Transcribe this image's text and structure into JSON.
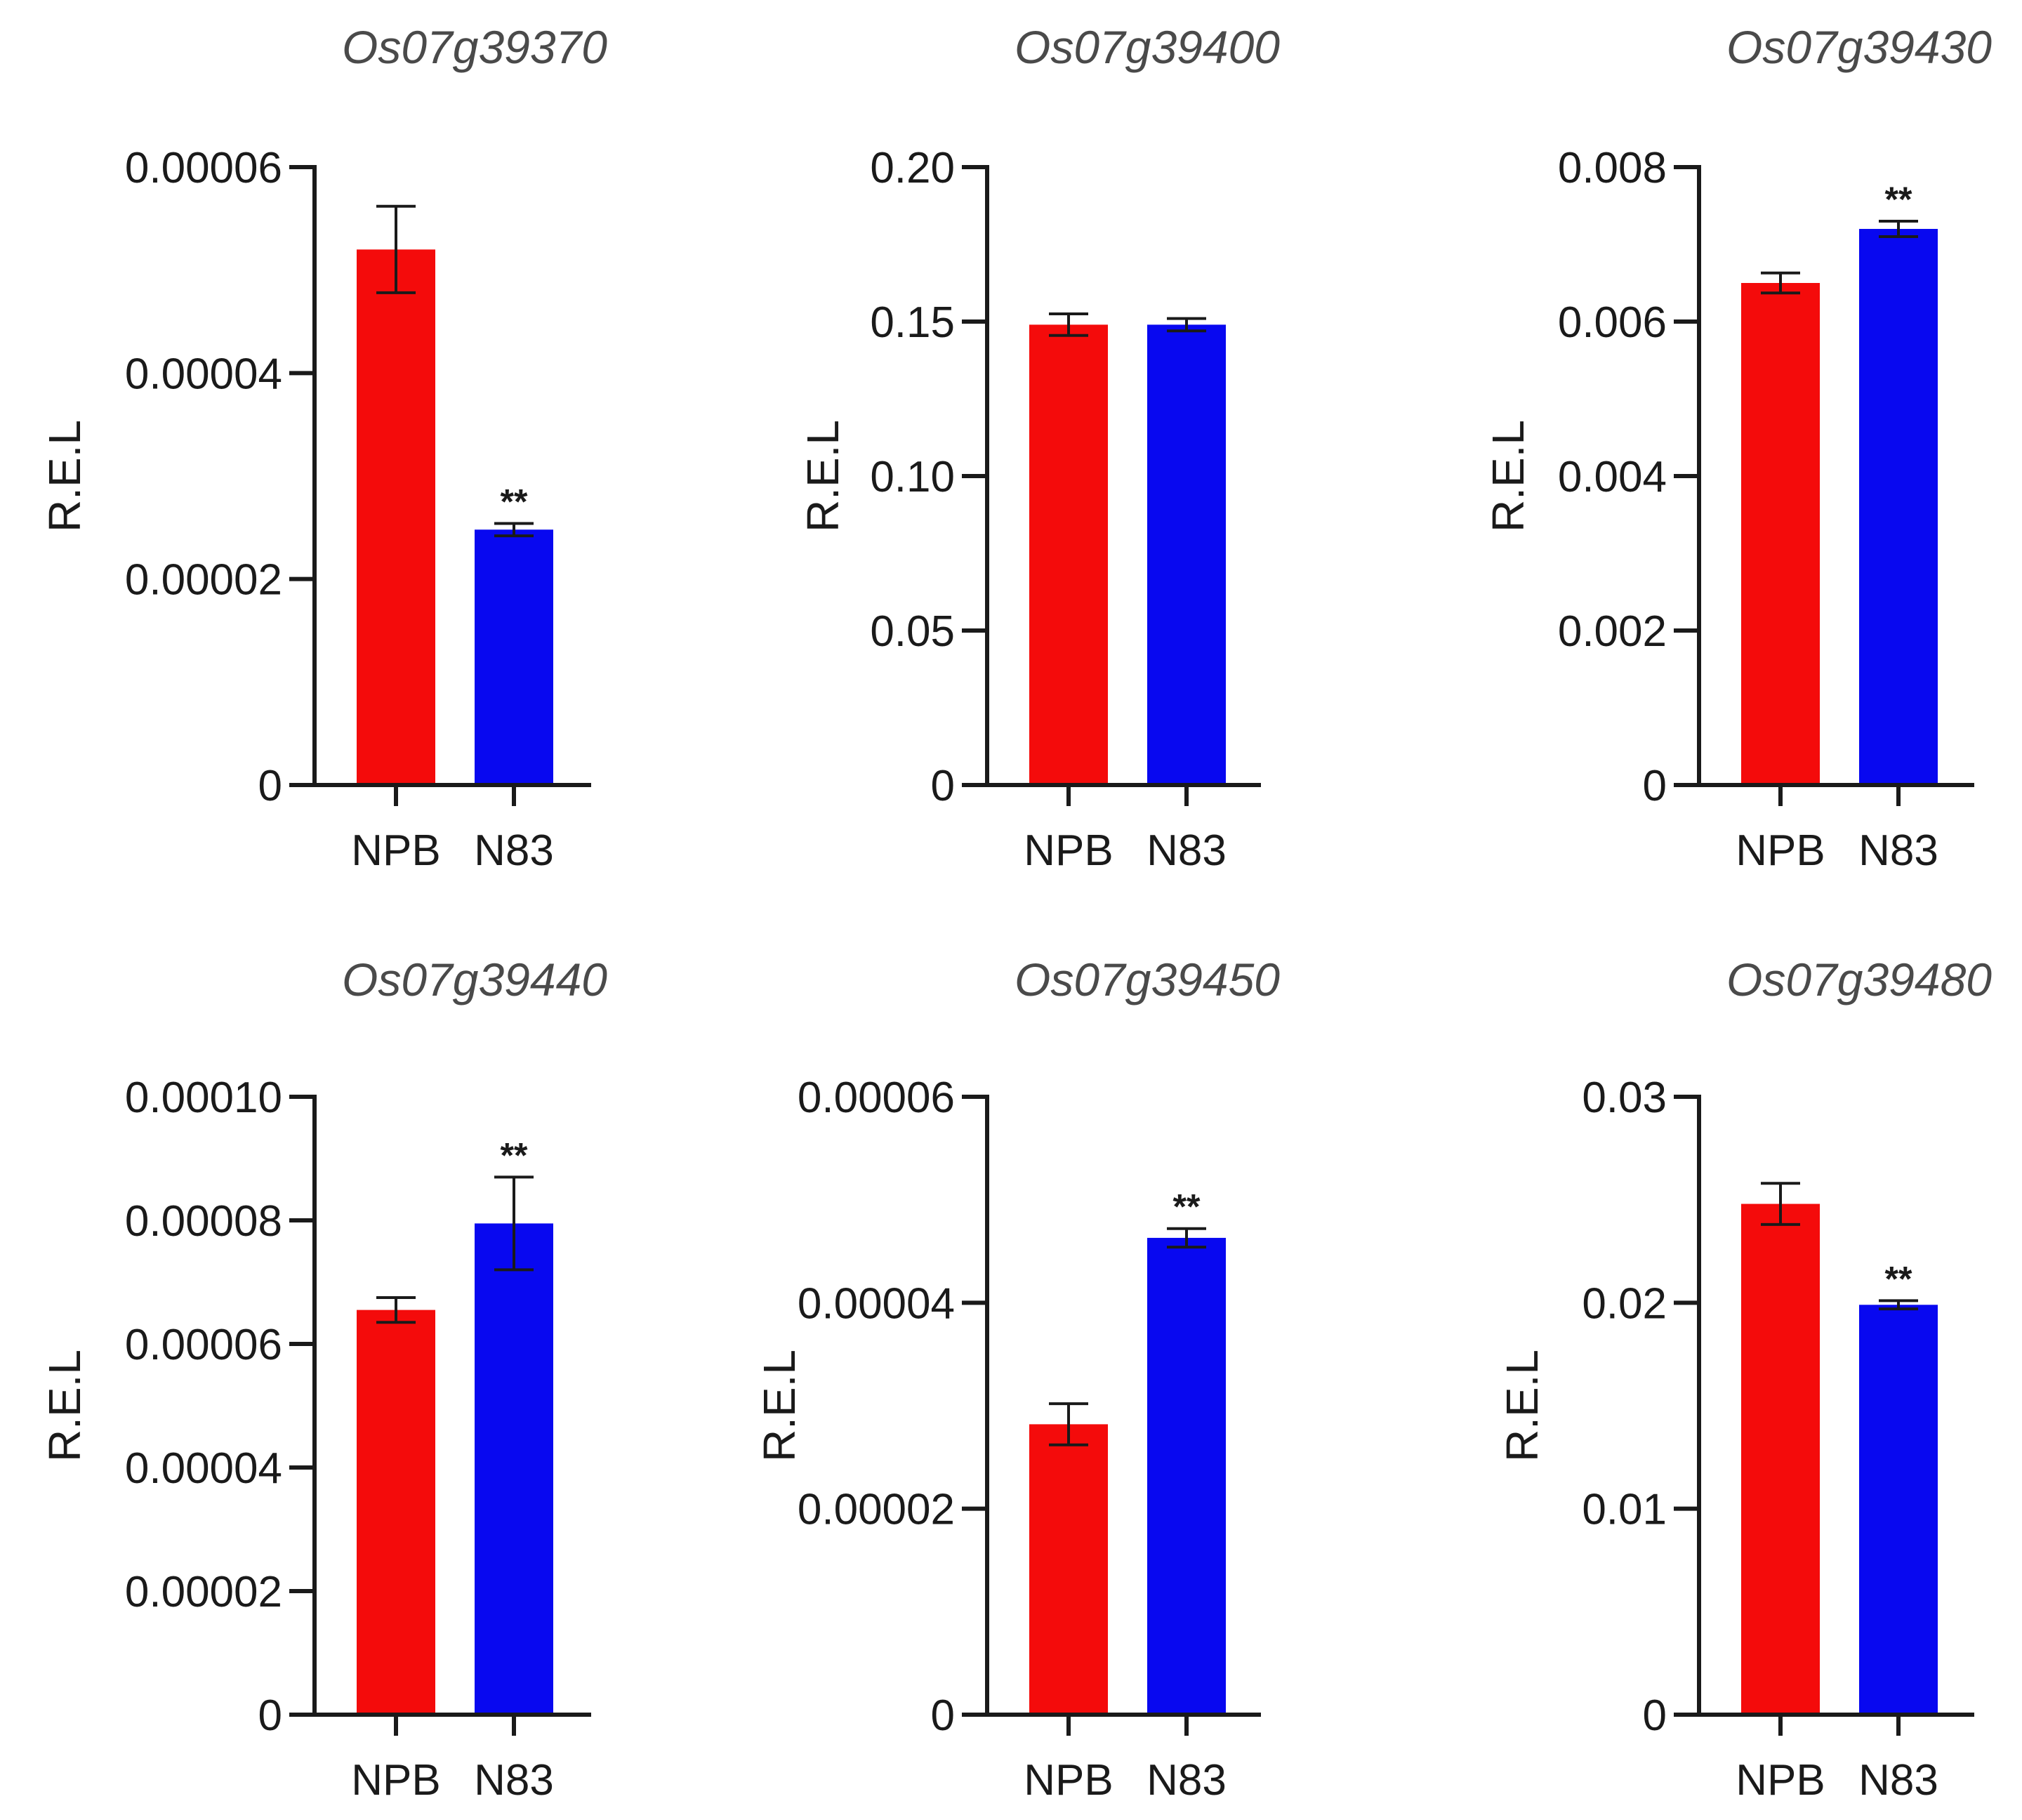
{
  "figure": {
    "ylabel": "R.E.L"
  },
  "colors": {
    "NPB": "#f40b0b",
    "N83": "#0808f0",
    "axis": "#1a1a1a"
  },
  "chart_data": [
    {
      "type": "bar",
      "title": "Os07g39370",
      "ylabel": "R.E.L",
      "categories": [
        "NPB",
        "N83"
      ],
      "values": [
        5.2e-05,
        2.48e-05
      ],
      "errors": [
        4.2e-06,
        6e-07
      ],
      "significance": [
        "",
        "**"
      ],
      "ylim": [
        0,
        6e-05
      ],
      "yticks": [
        0,
        2e-05,
        4e-05,
        6e-05
      ],
      "ytick_labels": [
        "0",
        "0.00002",
        "0.00004",
        "0.00006"
      ]
    },
    {
      "type": "bar",
      "title": "Os07g39400",
      "ylabel": "R.E.L",
      "categories": [
        "NPB",
        "N83"
      ],
      "values": [
        0.149,
        0.149
      ],
      "errors": [
        0.0035,
        0.002
      ],
      "significance": [
        "",
        ""
      ],
      "ylim": [
        0,
        0.2
      ],
      "yticks": [
        0,
        0.05,
        0.1,
        0.15,
        0.2
      ],
      "ytick_labels": [
        "0",
        "0.05",
        "0.10",
        "0.15",
        "0.20"
      ]
    },
    {
      "type": "bar",
      "title": "Os07g39430",
      "ylabel": "R.E.L",
      "categories": [
        "NPB",
        "N83"
      ],
      "values": [
        0.0065,
        0.0072
      ],
      "errors": [
        0.00013,
        0.0001
      ],
      "significance": [
        "",
        "**"
      ],
      "ylim": [
        0,
        0.008
      ],
      "yticks": [
        0,
        0.002,
        0.004,
        0.006,
        0.008
      ],
      "ytick_labels": [
        "0",
        "0.002",
        "0.004",
        "0.006",
        "0.008"
      ]
    },
    {
      "type": "bar",
      "title": "Os07g39440",
      "ylabel": "R.E.L",
      "categories": [
        "NPB",
        "N83"
      ],
      "values": [
        6.55e-05,
        7.95e-05
      ],
      "errors": [
        2e-06,
        7.5e-06
      ],
      "significance": [
        "",
        "**"
      ],
      "ylim": [
        0,
        0.0001
      ],
      "yticks": [
        0,
        2e-05,
        4e-05,
        6e-05,
        8e-05,
        0.0001
      ],
      "ytick_labels": [
        "0",
        "0.00002",
        "0.00004",
        "0.00006",
        "0.00008",
        "0.00010"
      ]
    },
    {
      "type": "bar",
      "title": "Os07g39450",
      "ylabel": "R.E.L",
      "categories": [
        "NPB",
        "N83"
      ],
      "values": [
        2.82e-05,
        4.63e-05
      ],
      "errors": [
        2e-06,
        9e-07
      ],
      "significance": [
        "",
        "**"
      ],
      "ylim": [
        0,
        6e-05
      ],
      "yticks": [
        0,
        2e-05,
        4e-05,
        6e-05
      ],
      "ytick_labels": [
        "0",
        "0.00002",
        "0.00004",
        "0.00006"
      ]
    },
    {
      "type": "bar",
      "title": "Os07g39480",
      "ylabel": "R.E.L",
      "categories": [
        "NPB",
        "N83"
      ],
      "values": [
        0.0248,
        0.0199
      ],
      "errors": [
        0.001,
        0.0002
      ],
      "significance": [
        "",
        "**"
      ],
      "ylim": [
        0,
        0.03
      ],
      "yticks": [
        0,
        0.01,
        0.02,
        0.03
      ],
      "ytick_labels": [
        "0",
        "0.01",
        "0.02",
        "0.03"
      ]
    }
  ]
}
